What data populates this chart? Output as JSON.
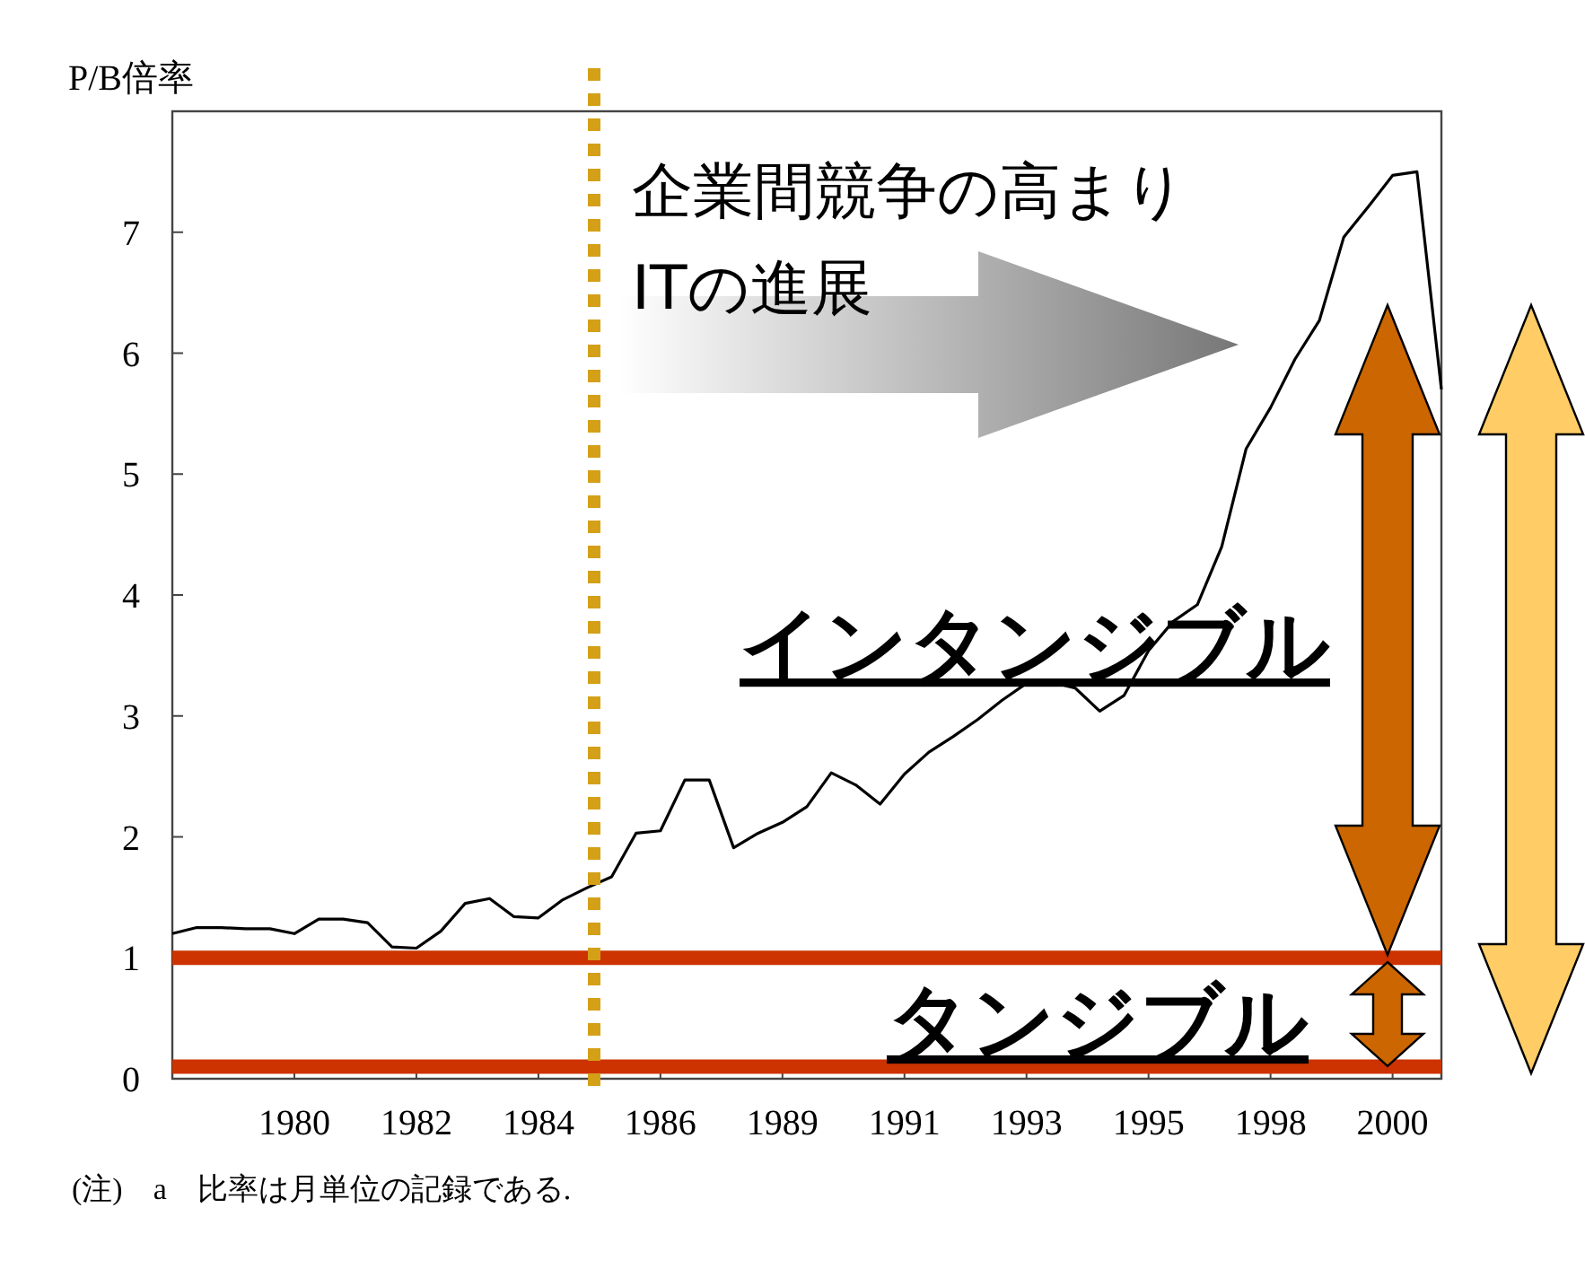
{
  "chart_data": {
    "type": "line",
    "ylabel": "P/B倍率",
    "categories": [
      null,
      null,
      null,
      null,
      null,
      "1980",
      null,
      null,
      null,
      null,
      "1982",
      null,
      null,
      null,
      null,
      "1984",
      null,
      null,
      null,
      null,
      "1986",
      null,
      null,
      null,
      null,
      "1989",
      null,
      null,
      null,
      null,
      "1991",
      null,
      null,
      null,
      null,
      "1993",
      null,
      null,
      null,
      null,
      "1995",
      null,
      null,
      null,
      null,
      "1998",
      null,
      null,
      null,
      null,
      "2000",
      null,
      null
    ],
    "series": [
      {
        "color": "#000000",
        "values": [
          1.2,
          1.25,
          1.25,
          1.24,
          1.24,
          1.2,
          1.32,
          1.32,
          1.29,
          1.09,
          1.08,
          1.22,
          1.45,
          1.49,
          1.34,
          1.33,
          1.48,
          1.58,
          1.67,
          2.03,
          2.05,
          2.47,
          2.47,
          1.91,
          2.03,
          2.12,
          2.25,
          2.53,
          2.43,
          2.27,
          2.52,
          2.7,
          2.83,
          2.97,
          3.13,
          3.27,
          3.28,
          3.23,
          3.04,
          3.17,
          3.54,
          3.78,
          3.92,
          4.4,
          5.21,
          5.55,
          5.95,
          6.27,
          6.96,
          7.21,
          7.47,
          7.5,
          5.7
        ]
      }
    ],
    "ylim": [
      0,
      8
    ],
    "yticks": [
      0,
      1,
      2,
      3,
      4,
      5,
      6,
      7
    ],
    "line_style": "solid",
    "marker": "none",
    "ref_lines": [
      {
        "axis": "y",
        "value": 1,
        "color": "#cc3300",
        "line_style": "solid"
      },
      {
        "axis": "y",
        "value": 0.1,
        "color": "#cc3300",
        "line_style": "solid"
      }
    ],
    "annotations": [
      "企業間競争の高まり",
      "ITの進展",
      "インタンジブル",
      "タンジブル",
      "(注)　a　比率は月単位の記録である."
    ]
  }
}
